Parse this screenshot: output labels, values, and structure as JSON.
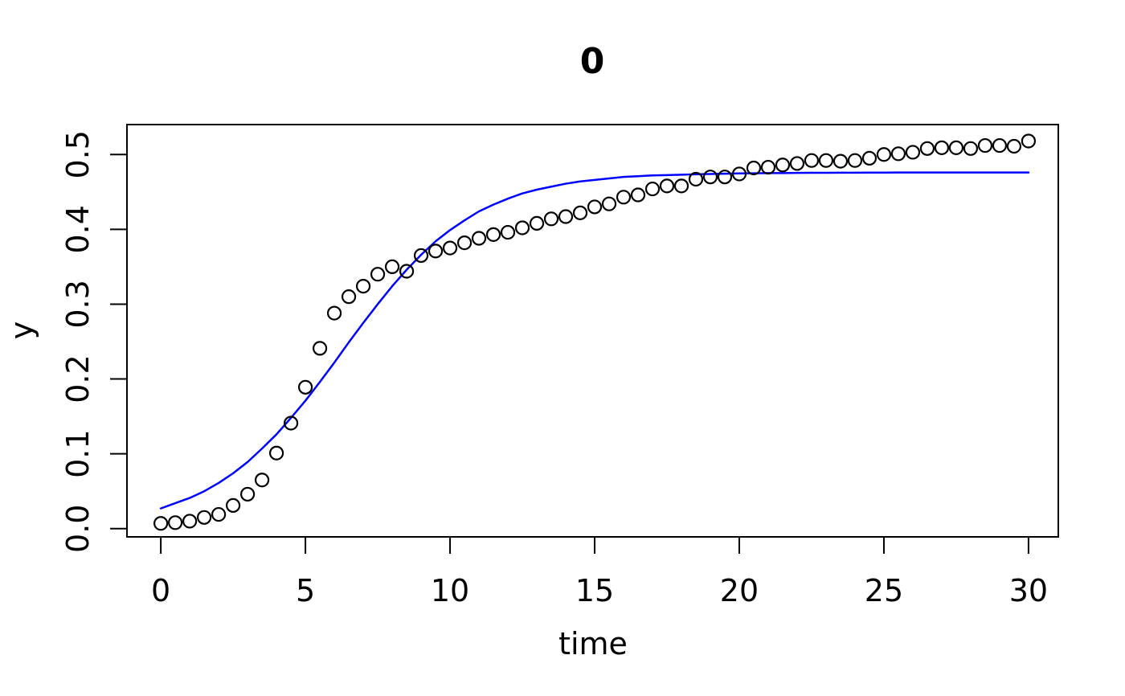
{
  "chart_data": {
    "type": "scatter",
    "title": "0",
    "xlabel": "time",
    "ylabel": "y",
    "xlim": [
      -1.17,
      31.03
    ],
    "ylim": [
      -0.011,
      0.54
    ],
    "grid": false,
    "background": "#ffffff",
    "x_ticks": [
      0,
      5,
      10,
      15,
      20,
      25,
      30
    ],
    "x_tick_labels": [
      "0",
      "5",
      "10",
      "15",
      "20",
      "25",
      "30"
    ],
    "y_ticks": [
      0.0,
      0.1,
      0.2,
      0.3,
      0.4,
      0.5
    ],
    "y_tick_labels": [
      "0.0",
      "0.1",
      "0.2",
      "0.3",
      "0.4",
      "0.5"
    ],
    "series": [
      {
        "name": "observed-points",
        "kind": "scatter",
        "marker": "open-circle",
        "color": "#000000",
        "x": [
          0,
          0.5,
          1,
          1.5,
          2,
          2.5,
          3,
          3.5,
          4,
          4.5,
          5,
          5.5,
          6,
          6.5,
          7,
          7.5,
          8,
          8.5,
          9,
          9.5,
          10,
          10.5,
          11,
          11.5,
          12,
          12.5,
          13,
          13.5,
          14,
          14.5,
          15,
          15.5,
          16,
          16.5,
          17,
          17.5,
          18,
          18.5,
          19,
          19.5,
          20,
          20.5,
          21,
          21.5,
          22,
          22.5,
          23,
          23.5,
          24,
          24.5,
          25,
          25.5,
          26,
          26.5,
          27,
          27.5,
          28,
          28.5,
          29,
          29.5,
          30
        ],
        "y": [
          0.007,
          0.008,
          0.01,
          0.015,
          0.019,
          0.031,
          0.046,
          0.065,
          0.101,
          0.141,
          0.189,
          0.241,
          0.288,
          0.31,
          0.324,
          0.34,
          0.35,
          0.344,
          0.365,
          0.371,
          0.375,
          0.382,
          0.388,
          0.393,
          0.396,
          0.402,
          0.408,
          0.414,
          0.417,
          0.422,
          0.43,
          0.434,
          0.443,
          0.446,
          0.454,
          0.458,
          0.458,
          0.467,
          0.47,
          0.47,
          0.474,
          0.482,
          0.483,
          0.486,
          0.488,
          0.492,
          0.492,
          0.491,
          0.492,
          0.495,
          0.5,
          0.501,
          0.503,
          0.508,
          0.509,
          0.509,
          0.508,
          0.512,
          0.512,
          0.511,
          0.518
        ]
      },
      {
        "name": "fitted-curve",
        "kind": "line",
        "color": "#0000ff",
        "x": [
          0,
          0.5,
          1,
          1.5,
          2,
          2.5,
          3,
          3.5,
          4,
          4.5,
          5,
          5.5,
          6,
          6.5,
          7,
          7.5,
          8,
          8.5,
          9,
          9.5,
          10,
          10.5,
          11,
          11.5,
          12,
          12.5,
          13,
          13.5,
          14,
          14.5,
          15,
          15.5,
          16,
          16.5,
          17,
          17.5,
          18,
          18.5,
          19,
          19.5,
          20,
          20.5,
          21,
          21.5,
          22,
          22.5,
          23,
          23.5,
          24,
          24.5,
          25,
          25.5,
          26,
          26.5,
          27,
          27.5,
          28,
          28.5,
          29,
          29.5,
          30
        ],
        "y": [
          0.027,
          0.034,
          0.041,
          0.05,
          0.061,
          0.074,
          0.089,
          0.107,
          0.126,
          0.148,
          0.171,
          0.196,
          0.222,
          0.249,
          0.275,
          0.3,
          0.324,
          0.346,
          0.366,
          0.384,
          0.399,
          0.412,
          0.424,
          0.433,
          0.441,
          0.448,
          0.453,
          0.457,
          0.461,
          0.464,
          0.466,
          0.468,
          0.47,
          0.471,
          0.472,
          0.4725,
          0.473,
          0.4735,
          0.474,
          0.4744,
          0.4747,
          0.4749,
          0.4751,
          0.4752,
          0.4754,
          0.4755,
          0.4756,
          0.4757,
          0.4757,
          0.4758,
          0.4758,
          0.4759,
          0.4759,
          0.4759,
          0.4759,
          0.476,
          0.476,
          0.476,
          0.476,
          0.476,
          0.476
        ]
      }
    ]
  }
}
